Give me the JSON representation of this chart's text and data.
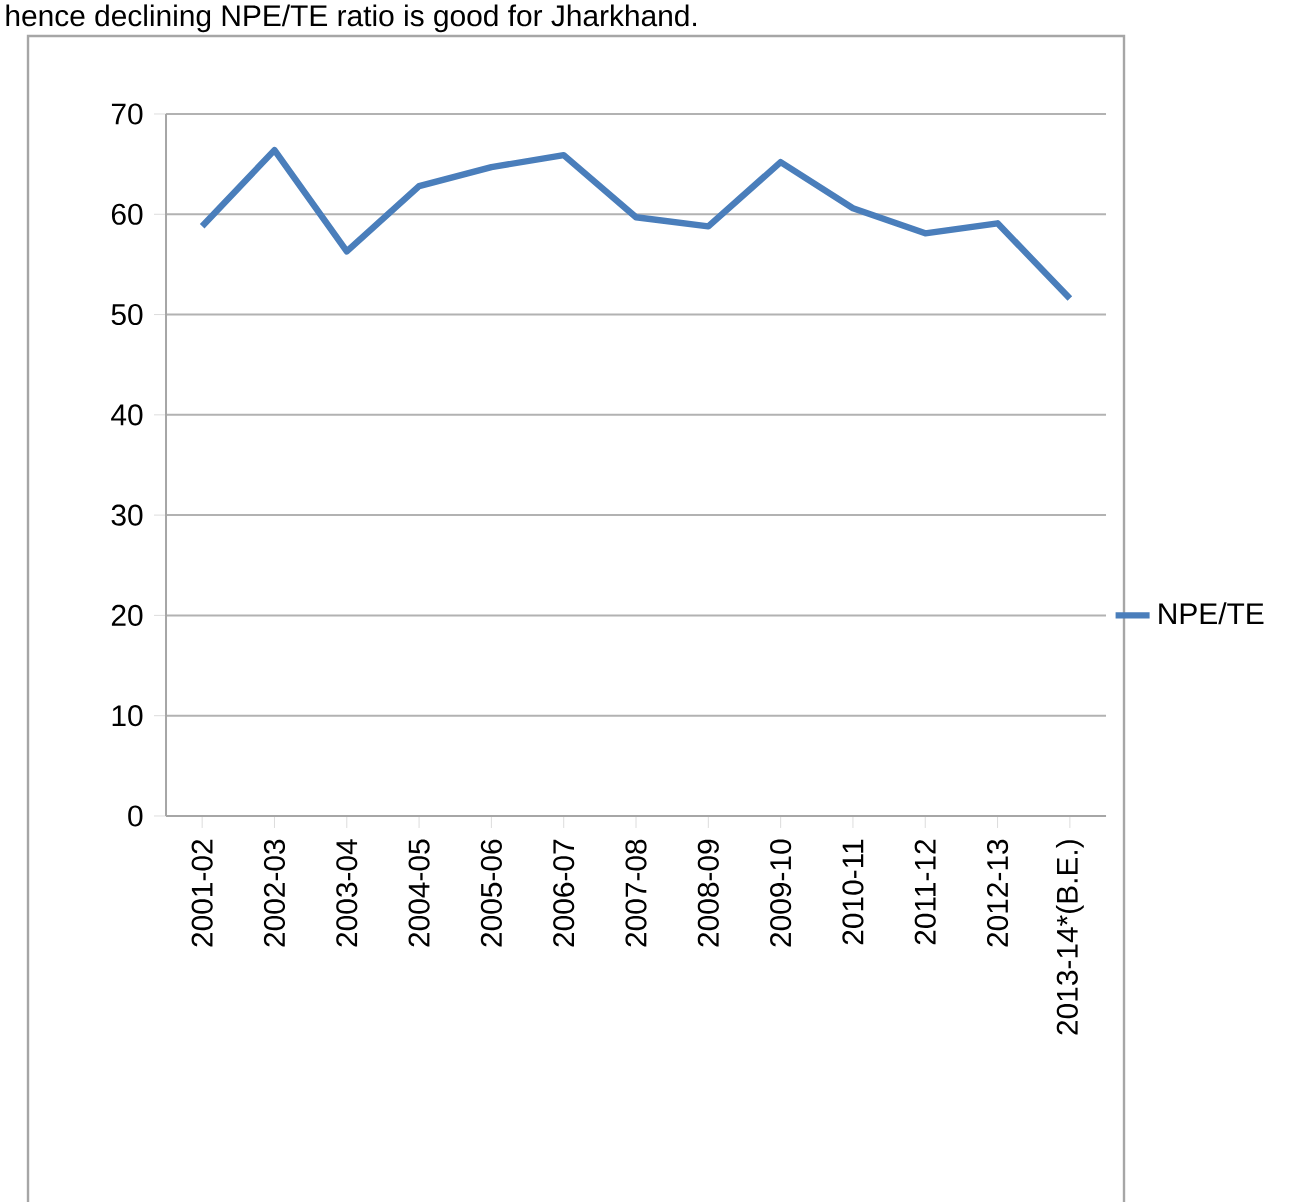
{
  "chart_data": {
    "type": "line",
    "annotations": [
      "hence declining NPE/TE ratio is good for Jharkhand."
    ],
    "categories": [
      "2001-02",
      "2002-03",
      "2003-04",
      "2004-05",
      "2005-06",
      "2006-07",
      "2007-08",
      "2008-09",
      "2009-10",
      "2010-11",
      "2011-12",
      "2012-13",
      "2013-14*(B.E.)"
    ],
    "series": [
      {
        "name": "NPE/TE",
        "color": "#4a7ebb",
        "values": [
          58.8,
          66.4,
          56.3,
          62.8,
          64.7,
          65.9,
          59.7,
          58.8,
          65.2,
          60.6,
          58.1,
          59.1,
          51.6
        ]
      }
    ],
    "ylim": [
      0,
      70
    ],
    "yticks": [
      0,
      10,
      20,
      30,
      40,
      50,
      60,
      70
    ],
    "grid": "y",
    "legend": "right",
    "marker": "none",
    "line_style": "solid"
  }
}
